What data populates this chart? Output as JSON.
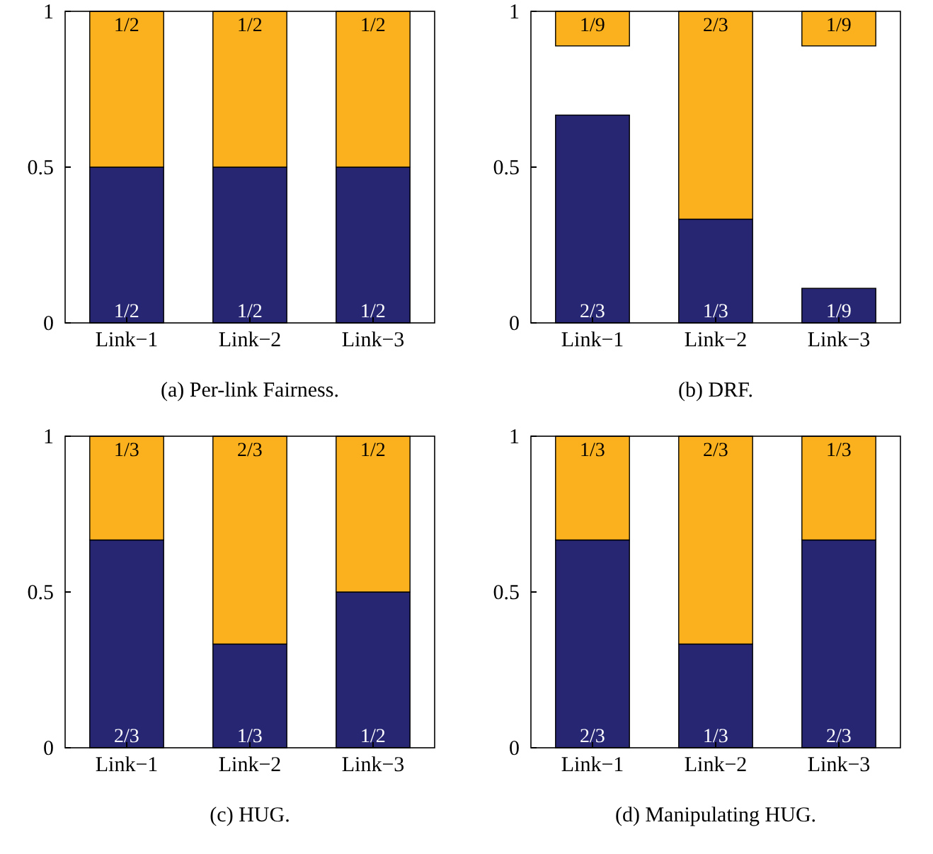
{
  "chart_data": [
    {
      "type": "bar",
      "title": "(a) Per-link Fairness.",
      "categories": [
        "Link−1",
        "Link−2",
        "Link−3"
      ],
      "stacked": true,
      "ylim": [
        0,
        1
      ],
      "yticks": [
        0,
        0.5,
        1
      ],
      "series": [
        {
          "color": "#262673",
          "values": [
            0.5,
            0.5,
            0.5
          ],
          "value_labels": [
            "1/2",
            "1/2",
            "1/2"
          ]
        },
        {
          "color": "#fbb11d",
          "values": [
            0.5,
            0.5,
            0.5
          ],
          "value_labels": [
            "1/2",
            "1/2",
            "1/2"
          ]
        }
      ]
    },
    {
      "type": "bar",
      "title": "(b) DRF.",
      "categories": [
        "Link−1",
        "Link−2",
        "Link−3"
      ],
      "ylim": [
        0,
        1
      ],
      "yticks": [
        0,
        0.5,
        1
      ],
      "series": [
        {
          "color": "#262673",
          "base": [
            0,
            0,
            0
          ],
          "values": [
            0.667,
            0.333,
            0.111
          ],
          "value_labels": [
            "2/3",
            "1/3",
            "1/9"
          ]
        },
        {
          "color": "#fbb11d",
          "base": [
            0.889,
            0.333,
            0.889
          ],
          "values": [
            0.111,
            0.667,
            0.111
          ],
          "value_labels": [
            "1/9",
            "2/3",
            "1/9"
          ]
        }
      ]
    },
    {
      "type": "bar",
      "title": "(c) HUG.",
      "categories": [
        "Link−1",
        "Link−2",
        "Link−3"
      ],
      "stacked": true,
      "ylim": [
        0,
        1
      ],
      "yticks": [
        0,
        0.5,
        1
      ],
      "series": [
        {
          "color": "#262673",
          "values": [
            0.667,
            0.333,
            0.5
          ],
          "value_labels": [
            "2/3",
            "1/3",
            "1/2"
          ]
        },
        {
          "color": "#fbb11d",
          "values": [
            0.333,
            0.667,
            0.5
          ],
          "value_labels": [
            "1/3",
            "2/3",
            "1/2"
          ]
        }
      ]
    },
    {
      "type": "bar",
      "title": "(d) Manipulating HUG.",
      "categories": [
        "Link−1",
        "Link−2",
        "Link−3"
      ],
      "stacked": true,
      "ylim": [
        0,
        1
      ],
      "yticks": [
        0,
        0.5,
        1
      ],
      "series": [
        {
          "color": "#262673",
          "values": [
            0.667,
            0.333,
            0.667
          ],
          "value_labels": [
            "2/3",
            "1/3",
            "2/3"
          ]
        },
        {
          "color": "#fbb11d",
          "values": [
            0.333,
            0.667,
            0.333
          ],
          "value_labels": [
            "1/3",
            "2/3",
            "1/3"
          ]
        }
      ]
    }
  ]
}
